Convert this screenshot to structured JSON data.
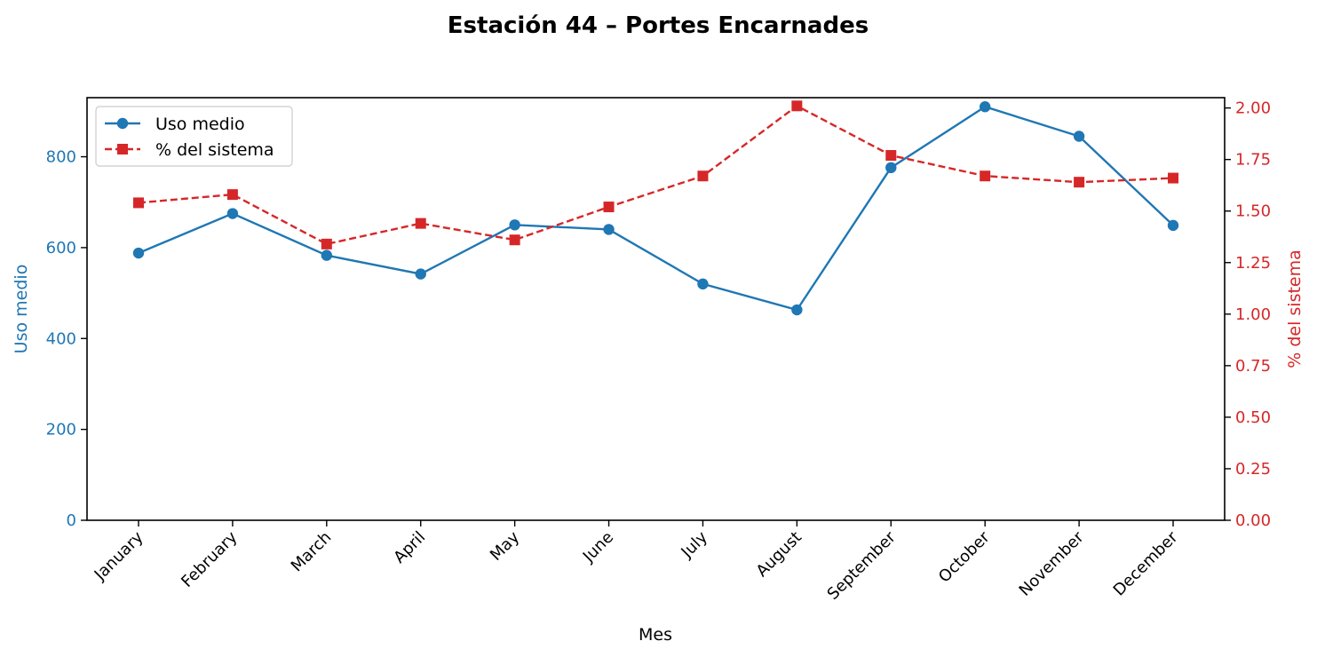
{
  "chart_data": {
    "type": "line",
    "title": "Estación 44 – Portes Encarnades",
    "xlabel": "Mes",
    "categories": [
      "January",
      "February",
      "March",
      "April",
      "May",
      "June",
      "July",
      "August",
      "September",
      "October",
      "November",
      "December"
    ],
    "y_left": {
      "label": "Uso medio",
      "ylim": [
        0,
        930
      ],
      "ticks": [
        0,
        200,
        400,
        600,
        800
      ],
      "color": "#1f77b4"
    },
    "y_right": {
      "label": "% del sistema",
      "ylim": [
        0,
        2.05
      ],
      "ticks": [
        0.0,
        0.25,
        0.5,
        0.75,
        1.0,
        1.25,
        1.5,
        1.75,
        2.0
      ],
      "color": "#d62728"
    },
    "series": [
      {
        "name": "Uso medio",
        "axis": "left",
        "color": "#1f77b4",
        "marker": "circle",
        "linestyle": "solid",
        "values": [
          588,
          675,
          583,
          542,
          650,
          640,
          520,
          463,
          776,
          910,
          845,
          649
        ]
      },
      {
        "name": "% del sistema",
        "axis": "right",
        "color": "#d62728",
        "marker": "square",
        "linestyle": "dashed",
        "values": [
          1.54,
          1.58,
          1.34,
          1.44,
          1.36,
          1.52,
          1.67,
          2.01,
          1.77,
          1.67,
          1.64,
          1.66
        ]
      }
    ],
    "legend": "top-left",
    "grid": false
  }
}
